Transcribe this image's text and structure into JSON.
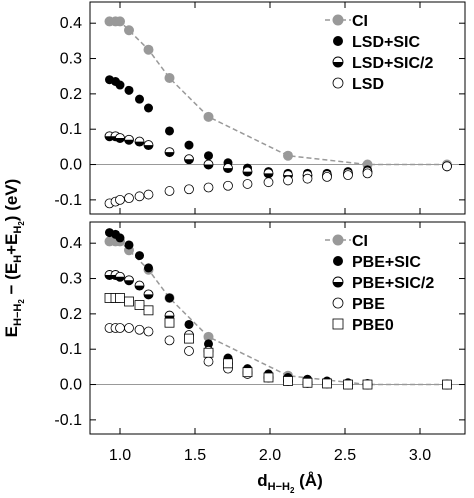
{
  "chart_data": {
    "ylabel": "E_{H-H2} - (E_H+E_H2) (eV)",
    "xlabel": "d_{H-H2} (Å)",
    "xlim": [
      0.8,
      3.3
    ],
    "x_ticks": [
      1.0,
      1.5,
      2.0,
      2.5,
      3.0
    ],
    "x_tick_labels": [
      "1.0",
      "1.5",
      "2.0",
      "2.5",
      "3.0"
    ],
    "colors": {
      "ci": "#999999",
      "ref_line": "#999999",
      "ink": "#000000"
    },
    "panels": [
      {
        "type": "scatter",
        "ylim": [
          -0.14,
          0.46
        ],
        "y_ticks": [
          -0.1,
          0.0,
          0.1,
          0.2,
          0.3,
          0.4
        ],
        "y_tick_labels": [
          "-0.1",
          "0.0",
          "0.1",
          "0.2",
          "0.3",
          "0.4"
        ],
        "legend": "top-right",
        "reference_line_y": 0.0,
        "series": [
          {
            "name": "CI",
            "marker": "gray-filled-circle",
            "dashed_line": true,
            "x": [
              0.93,
              0.97,
              1.0,
              1.06,
              1.19,
              1.33,
              1.59,
              2.12,
              2.65,
              3.18
            ],
            "y": [
              0.405,
              0.405,
              0.405,
              0.38,
              0.325,
              0.245,
              0.135,
              0.025,
              0.0,
              0.0
            ]
          },
          {
            "name": "LSD+SIC",
            "marker": "filled-circle",
            "x": [
              0.93,
              0.97,
              1.0,
              1.06,
              1.13,
              1.19,
              1.33,
              1.46,
              1.59,
              1.72,
              1.85,
              1.99,
              2.12,
              2.25,
              2.38,
              2.52,
              2.65,
              3.18
            ],
            "y": [
              0.24,
              0.235,
              0.225,
              0.21,
              0.185,
              0.16,
              0.095,
              0.055,
              0.025,
              0.005,
              -0.01,
              -0.02,
              -0.025,
              -0.025,
              -0.025,
              -0.02,
              -0.015,
              -0.005
            ]
          },
          {
            "name": "LSD+SIC/2",
            "marker": "half-filled-circle",
            "x": [
              0.93,
              0.97,
              1.0,
              1.06,
              1.13,
              1.19,
              1.33,
              1.46,
              1.59,
              1.72,
              1.85,
              1.99,
              2.12,
              2.25,
              2.38,
              2.52,
              2.65,
              3.18
            ],
            "y": [
              0.08,
              0.08,
              0.075,
              0.07,
              0.065,
              0.055,
              0.035,
              0.015,
              0.0,
              -0.01,
              -0.02,
              -0.025,
              -0.03,
              -0.03,
              -0.03,
              -0.025,
              -0.02,
              -0.005
            ]
          },
          {
            "name": "LSD",
            "marker": "open-circle",
            "x": [
              0.93,
              0.97,
              1.0,
              1.06,
              1.13,
              1.19,
              1.33,
              1.46,
              1.59,
              1.72,
              1.85,
              1.99,
              2.12,
              2.25,
              2.38,
              2.52,
              2.65,
              3.18
            ],
            "y": [
              -0.11,
              -0.105,
              -0.1,
              -0.095,
              -0.09,
              -0.085,
              -0.075,
              -0.07,
              -0.065,
              -0.06,
              -0.055,
              -0.05,
              -0.045,
              -0.04,
              -0.035,
              -0.03,
              -0.025,
              -0.005
            ]
          }
        ]
      },
      {
        "type": "scatter",
        "ylim": [
          -0.14,
          0.46
        ],
        "y_ticks": [
          -0.1,
          0.0,
          0.1,
          0.2,
          0.3,
          0.4
        ],
        "y_tick_labels": [
          "-0.1",
          "0.0",
          "0.1",
          "0.2",
          "0.3",
          "0.4"
        ],
        "legend": "top-right",
        "reference_line_y": 0.0,
        "series": [
          {
            "name": "CI",
            "marker": "gray-filled-circle",
            "dashed_line": true,
            "x": [
              0.93,
              0.97,
              1.0,
              1.06,
              1.19,
              1.33,
              1.59,
              2.12,
              2.65,
              3.18
            ],
            "y": [
              0.405,
              0.405,
              0.405,
              0.38,
              0.325,
              0.245,
              0.135,
              0.025,
              0.0,
              0.0
            ]
          },
          {
            "name": "PBE+SIC",
            "marker": "filled-circle",
            "x": [
              0.93,
              0.97,
              1.0,
              1.06,
              1.13,
              1.19,
              1.33,
              1.46,
              1.59,
              1.72,
              1.85,
              1.99,
              2.12,
              2.25,
              2.38,
              2.52,
              2.65,
              3.18
            ],
            "y": [
              0.43,
              0.425,
              0.415,
              0.395,
              0.365,
              0.33,
              0.245,
              0.17,
              0.115,
              0.075,
              0.045,
              0.03,
              0.02,
              0.015,
              0.01,
              0.005,
              0.003,
              0.0
            ]
          },
          {
            "name": "PBE+SIC/2",
            "marker": "half-filled-circle",
            "x": [
              0.93,
              0.97,
              1.0,
              1.06,
              1.13,
              1.19,
              1.33,
              1.46,
              1.59,
              1.72,
              1.85,
              1.99,
              2.12,
              2.25,
              2.38,
              2.52,
              2.65,
              3.18
            ],
            "y": [
              0.31,
              0.31,
              0.305,
              0.295,
              0.28,
              0.255,
              0.195,
              0.14,
              0.095,
              0.06,
              0.035,
              0.02,
              0.01,
              0.005,
              0.005,
              0.002,
              0.0,
              0.0
            ]
          },
          {
            "name": "PBE",
            "marker": "open-circle",
            "x": [
              0.93,
              0.97,
              1.0,
              1.06,
              1.13,
              1.19,
              1.33,
              1.46,
              1.59,
              1.72,
              1.85,
              1.99,
              2.12,
              2.25,
              2.38,
              2.52,
              2.65,
              3.18
            ],
            "y": [
              0.16,
              0.16,
              0.16,
              0.16,
              0.155,
              0.15,
              0.125,
              0.095,
              0.065,
              0.045,
              0.03,
              0.02,
              0.01,
              0.005,
              0.003,
              0.0,
              0.0,
              0.0
            ]
          },
          {
            "name": "PBE0",
            "marker": "open-square",
            "x": [
              0.93,
              0.97,
              1.0,
              1.06,
              1.13,
              1.19,
              1.33,
              1.46,
              1.59,
              1.72,
              1.85,
              1.99,
              2.12,
              2.25,
              2.38,
              2.52,
              2.65,
              3.18
            ],
            "y": [
              0.245,
              0.245,
              0.245,
              0.235,
              0.225,
              0.21,
              0.175,
              0.13,
              0.09,
              0.06,
              0.035,
              0.02,
              0.01,
              0.005,
              0.003,
              0.0,
              0.0,
              0.0
            ]
          }
        ]
      }
    ]
  }
}
